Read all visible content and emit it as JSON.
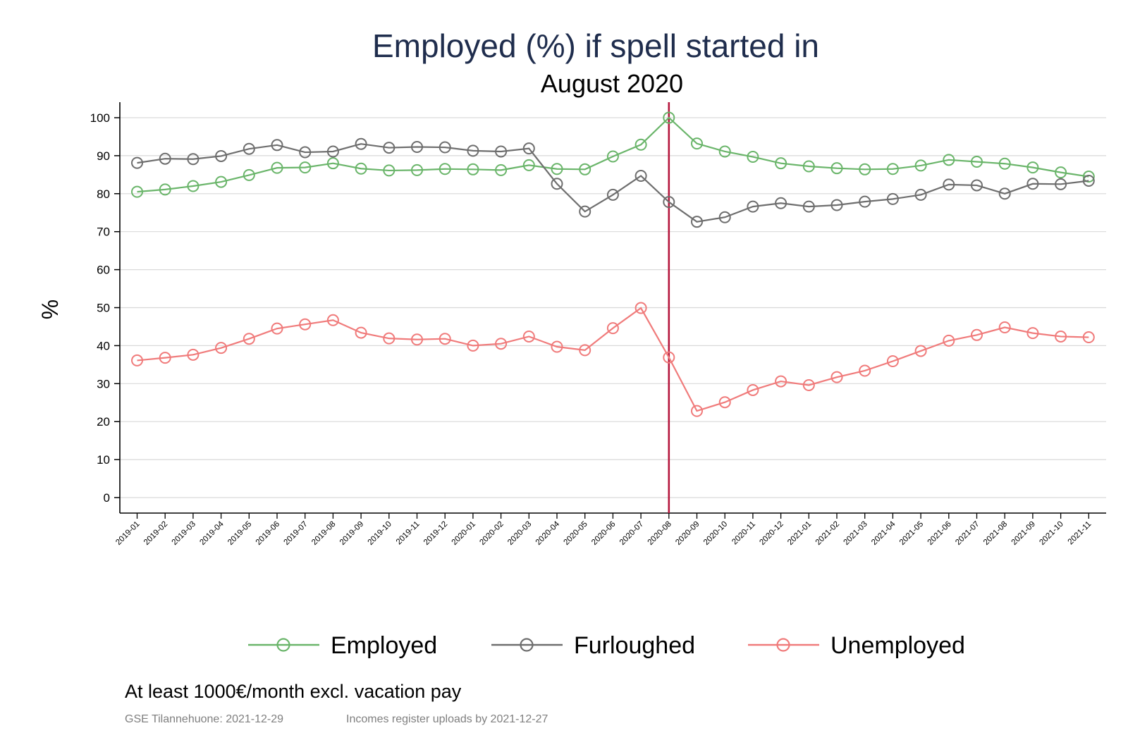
{
  "chart_data": {
    "type": "line",
    "title": "Employed (%) if spell started in",
    "subtitle": "August 2020",
    "ylabel": "%",
    "xlabel": "",
    "ylim": [
      0,
      100
    ],
    "yticks": [
      0,
      10,
      20,
      30,
      40,
      50,
      60,
      70,
      80,
      90,
      100
    ],
    "grid": true,
    "legend_position": "bottom",
    "marker": "hollow-circle",
    "reference_line": {
      "x": "2020-08",
      "color": "#b5173d"
    },
    "x": [
      "2019-01",
      "2019-02",
      "2019-03",
      "2019-04",
      "2019-05",
      "2019-06",
      "2019-07",
      "2019-08",
      "2019-09",
      "2019-10",
      "2019-11",
      "2019-12",
      "2020-01",
      "2020-02",
      "2020-03",
      "2020-04",
      "2020-05",
      "2020-06",
      "2020-07",
      "2020-08",
      "2020-09",
      "2020-10",
      "2020-11",
      "2020-12",
      "2021-01",
      "2021-02",
      "2021-03",
      "2021-04",
      "2021-05",
      "2021-06",
      "2021-07",
      "2021-08",
      "2021-09",
      "2021-10",
      "2021-11"
    ],
    "series": [
      {
        "name": "Employed",
        "color": "#6ab56a",
        "values": [
          80.5,
          81.1,
          82.0,
          83.1,
          84.9,
          86.8,
          86.9,
          88.0,
          86.6,
          86.1,
          86.2,
          86.5,
          86.4,
          86.2,
          87.5,
          86.5,
          86.4,
          89.8,
          92.9,
          100.0,
          93.2,
          91.1,
          89.7,
          88.0,
          87.2,
          86.7,
          86.4,
          86.5,
          87.4,
          88.9,
          88.4,
          87.9,
          86.9,
          85.6,
          84.5
        ]
      },
      {
        "name": "Furloughed",
        "color": "#6e6e6e",
        "values": [
          88.1,
          89.2,
          89.1,
          89.9,
          91.8,
          92.8,
          90.9,
          91.1,
          93.1,
          92.1,
          92.3,
          92.2,
          91.3,
          91.1,
          91.9,
          82.6,
          75.3,
          79.7,
          84.7,
          77.8,
          72.6,
          73.8,
          76.6,
          77.5,
          76.6,
          77.0,
          77.9,
          78.6,
          79.7,
          82.4,
          82.2,
          80.0,
          82.6,
          82.5,
          83.4
        ]
      },
      {
        "name": "Unemployed",
        "color": "#f07b7b",
        "values": [
          36.1,
          36.8,
          37.6,
          39.4,
          41.8,
          44.5,
          45.6,
          46.7,
          43.4,
          41.9,
          41.6,
          41.8,
          40.0,
          40.5,
          42.4,
          39.7,
          38.8,
          44.6,
          49.9,
          36.9,
          22.8,
          25.1,
          28.3,
          30.6,
          29.6,
          31.7,
          33.4,
          35.9,
          38.6,
          41.3,
          42.8,
          44.8,
          43.3,
          42.4,
          42.2
        ]
      }
    ]
  },
  "notes": {
    "restriction": "At least 1000€/month excl. vacation pay",
    "source_left": "GSE Tilannehuone: 2021-12-29",
    "source_right": "Incomes register uploads by 2021-12-27"
  }
}
